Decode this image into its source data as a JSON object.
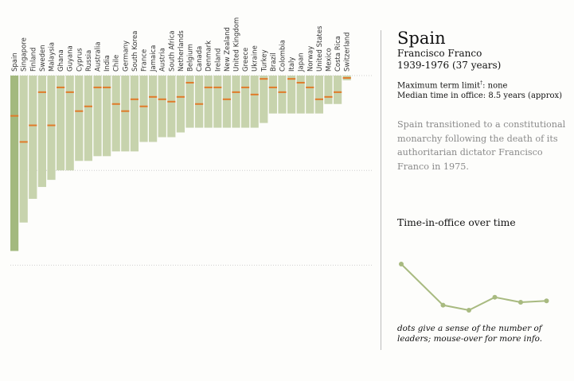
{
  "chart_data": {
    "type": "bar",
    "categories": [
      "Spain",
      "Singapore",
      "Finland",
      "Sweden",
      "Malaysia",
      "Ghana",
      "Guyana",
      "Cyprus",
      "Russia",
      "Australia",
      "India",
      "Chile",
      "Germany",
      "South Korea",
      "France",
      "Jamaica",
      "Austria",
      "South Africa",
      "Netherlands",
      "Belgium",
      "Canada",
      "Denmark",
      "Ireland",
      "New Zealand",
      "United Kingdom",
      "Greece",
      "Ukraine",
      "Turkey",
      "Brazil",
      "Colombia",
      "Italy",
      "Japan",
      "Norway",
      "United States",
      "Mexico",
      "Costa Rica",
      "Switzerland"
    ],
    "series": [
      {
        "values": [
          37,
          31,
          26,
          23.5,
          22,
          20,
          20,
          18,
          18,
          17,
          17,
          16,
          16,
          16,
          14,
          14,
          13,
          13,
          12,
          11,
          11,
          11,
          11,
          11,
          11,
          11,
          11,
          10,
          8,
          8,
          8,
          8,
          8,
          8,
          6,
          6,
          1
        ]
      },
      {
        "values": [
          8.5,
          14,
          10.5,
          3.5,
          10.5,
          2.5,
          3.5,
          7.5,
          6.5,
          2.5,
          2.5,
          6,
          7.5,
          5,
          6.5,
          4.5,
          5,
          5.5,
          4.5,
          1.5,
          6,
          2.5,
          2.5,
          5,
          3.5,
          2.5,
          4,
          0.7,
          2.5,
          3.5,
          0.7,
          1.5,
          2.5,
          5,
          4.5,
          3.5,
          0.5
        ]
      }
    ],
    "ylim": [
      0,
      42
    ],
    "gridlines": [
      0,
      20,
      40
    ],
    "selected": "Spain"
  },
  "detail": {
    "country": "Spain",
    "leader": "Francisco Franco",
    "years": "1939-1976 (37 years)",
    "term_limit_label": "Maximum term limit",
    "term_limit_mark": "†",
    "term_limit_value": ": none",
    "median_text": "Median time in office: 8.5 years (approx)",
    "blurb": "Spain transitioned to a constitutional monarchy following the death of its authoritarian dictator Francisco Franco in 1975."
  },
  "spark": {
    "title": "Time-in-office over time",
    "values": [
      37,
      8.5,
      5,
      14,
      10.5,
      11.5
    ],
    "footnote": "dots give a sense of the number of leaders; mouse-over for more info.",
    "color": "#a8ba80"
  },
  "colors": {
    "bar": "#c7d3ad",
    "selected": "#a3b97e",
    "median": "#e07b2a"
  }
}
